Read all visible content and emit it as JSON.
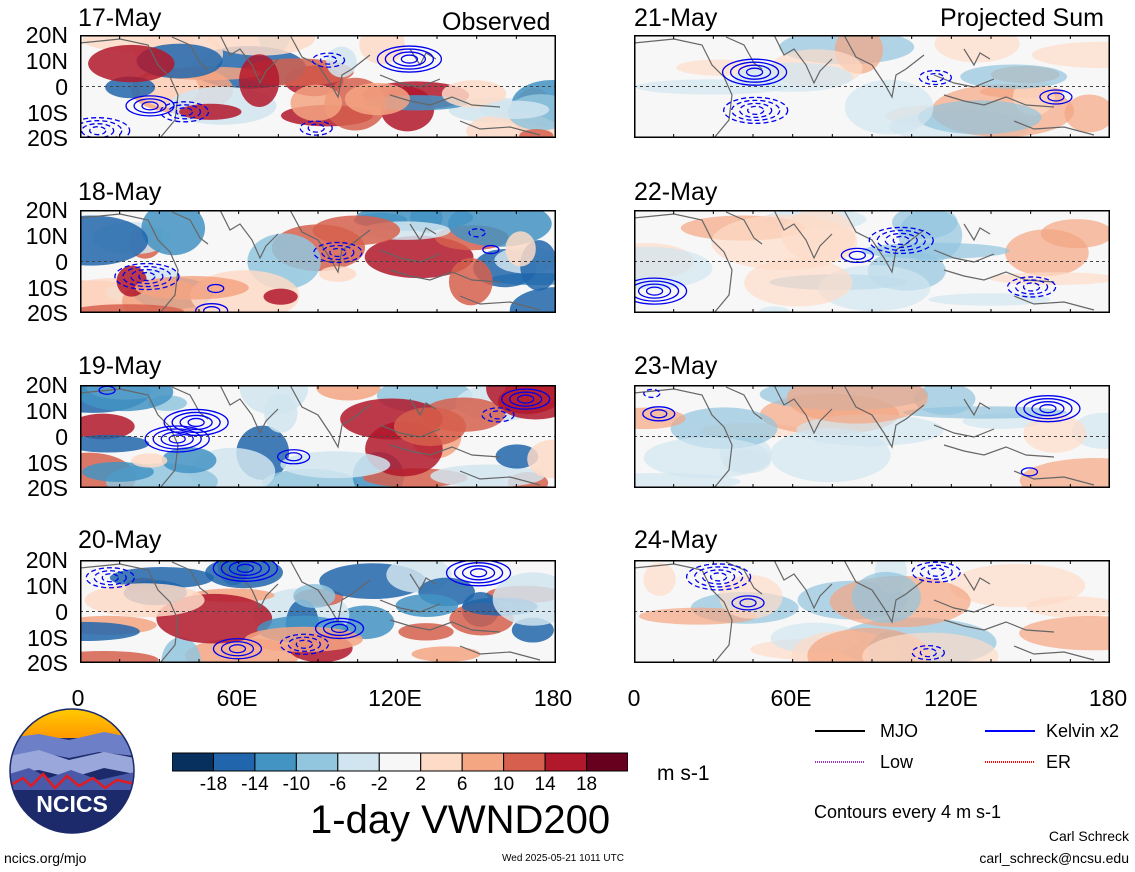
{
  "column_titles": {
    "left": "Observed",
    "right": "Projected Sum"
  },
  "panels": {
    "observed": [
      {
        "date": "17-May"
      },
      {
        "date": "18-May"
      },
      {
        "date": "19-May"
      },
      {
        "date": "20-May"
      }
    ],
    "projected": [
      {
        "date": "21-May"
      },
      {
        "date": "22-May"
      },
      {
        "date": "23-May"
      },
      {
        "date": "24-May"
      }
    ]
  },
  "lat_labels": [
    "20N",
    "10N",
    "0",
    "10S",
    "20S"
  ],
  "lon_labels": [
    "0",
    "60E",
    "120E",
    "180"
  ],
  "colorbar": {
    "labels": [
      "-18",
      "-14",
      "-10",
      "-6",
      "-2",
      "2",
      "6",
      "10",
      "14",
      "18"
    ],
    "colors": [
      "#08305e",
      "#2166ac",
      "#4393c3",
      "#92c5de",
      "#d1e5f0",
      "#f7f7f7",
      "#fddbc7",
      "#f4a582",
      "#d6604d",
      "#b2182b",
      "#67001f"
    ],
    "units": "m s-1"
  },
  "main_title": "1-day VWND200",
  "legend": {
    "items": [
      {
        "label": "MJO",
        "color": "#000000"
      },
      {
        "label": "Kelvin x2",
        "color": "#0000ff"
      },
      {
        "label": "Low",
        "color": "#9933cc"
      },
      {
        "label": "ER",
        "color": "#ff0000"
      }
    ],
    "contour_note": "Contours every 4 m s-1"
  },
  "logo_text": "NCICS",
  "footer": {
    "website": "ncics.org/mjo",
    "timestamp": "Wed 2025-05-21 1011 UTC",
    "author": "Carl Schreck",
    "email": "carl_schreck@ncsu.edu"
  }
}
